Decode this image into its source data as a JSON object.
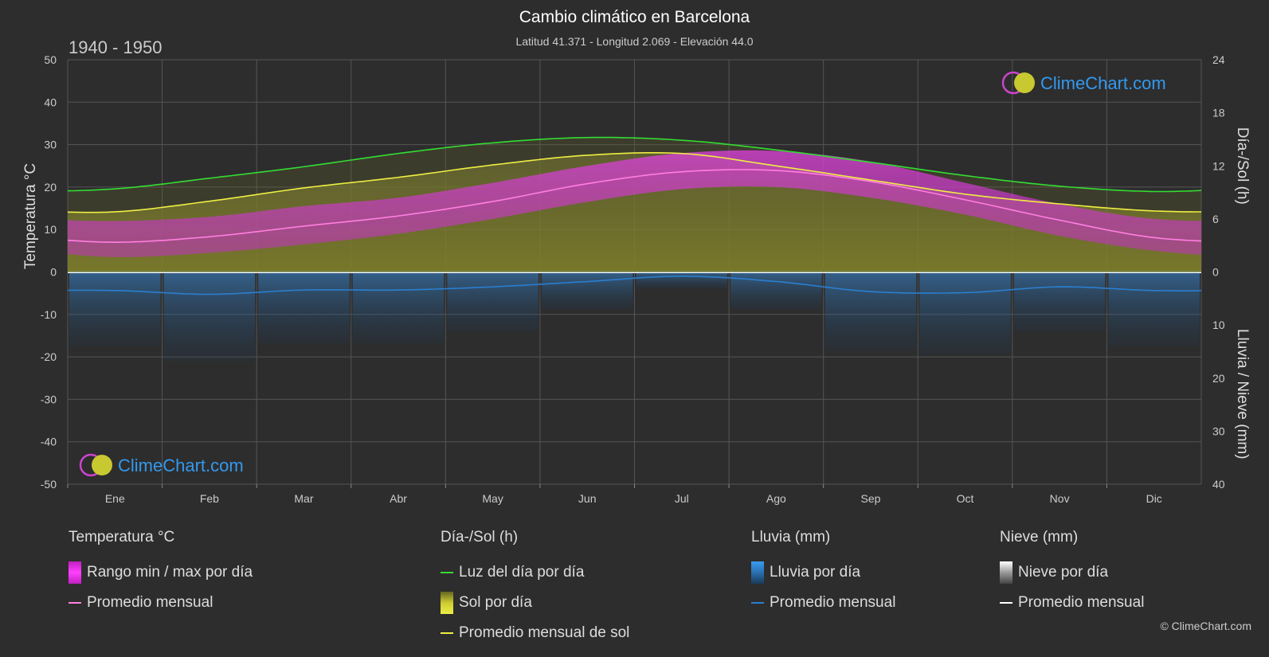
{
  "header": {
    "title": "Cambio climático en Barcelona",
    "subtitle": "Latitud 41.371 - Longitud 2.069 - Elevación 44.0",
    "period": "1940 - 1950"
  },
  "watermark": "ClimeChart.com",
  "copyright": "© ClimeChart.com",
  "legend": {
    "temp": {
      "header": "Temperatura °C",
      "range": "Rango min / max por día",
      "avg": "Promedio mensual"
    },
    "sun": {
      "header": "Día-/Sol (h)",
      "daylight": "Luz del día por día",
      "sun": "Sol por día",
      "avg": "Promedio mensual de sol"
    },
    "rain": {
      "header": "Lluvia (mm)",
      "rain": "Lluvia por día",
      "avg": "Promedio mensual"
    },
    "snow": {
      "header": "Nieve (mm)",
      "snow": "Nieve por día",
      "avg": "Promedio mensual"
    }
  },
  "colors": {
    "background": "#2d2d2d",
    "temp_range": "#e040e0",
    "temp_avg": "#ff7fe0",
    "daylight": "#33dd33",
    "sunshine": "#bbbb33",
    "sun_avg": "#eeee44",
    "rain": "#3a8bd8",
    "rain_avg": "#2a7fd0",
    "snow": "#dddddd",
    "snow_avg": "#ffffff"
  },
  "chart_data": {
    "type": "area",
    "months": [
      "Ene",
      "Feb",
      "Mar",
      "Abr",
      "May",
      "Jun",
      "Jul",
      "Ago",
      "Sep",
      "Oct",
      "Nov",
      "Dic"
    ],
    "y_left": {
      "label": "Temperatura °C",
      "range": [
        -50,
        50
      ],
      "ticks": [
        50,
        40,
        30,
        20,
        10,
        0,
        -10,
        -20,
        -30,
        -40,
        -50
      ]
    },
    "y_right_top": {
      "label": "Día-/Sol (h)",
      "range": [
        0,
        24
      ],
      "ticks": [
        24,
        18,
        12,
        6,
        0
      ]
    },
    "y_right_bottom": {
      "label": "Lluvia / Nieve (mm)",
      "range": [
        0,
        40
      ],
      "ticks": [
        10,
        20,
        30,
        40
      ]
    },
    "series": [
      {
        "name": "Luz del día por día",
        "unit": "h",
        "values": [
          9.4,
          10.6,
          11.9,
          13.4,
          14.6,
          15.2,
          14.9,
          13.8,
          12.4,
          10.9,
          9.7,
          9.1
        ]
      },
      {
        "name": "Sol por día",
        "unit": "h",
        "values": [
          6.8,
          8.0,
          9.5,
          10.7,
          12.1,
          13.2,
          13.4,
          12.0,
          10.4,
          8.8,
          7.7,
          6.9
        ]
      },
      {
        "name": "Promedio mensual",
        "unit": "°C",
        "values": [
          7.0,
          8.3,
          10.8,
          13.2,
          16.6,
          20.8,
          23.6,
          23.9,
          21.3,
          17.0,
          12.2,
          8.1
        ]
      },
      {
        "name": "Rango min / max por día (min)",
        "unit": "°C",
        "values": [
          3.5,
          4.5,
          6.5,
          9.0,
          12.5,
          16.5,
          19.5,
          20.0,
          17.5,
          13.5,
          8.5,
          5.0
        ]
      },
      {
        "name": "Rango min / max por día (max)",
        "unit": "°C",
        "values": [
          12.0,
          13.0,
          15.5,
          17.5,
          21.0,
          25.0,
          28.0,
          28.5,
          26.0,
          21.0,
          16.0,
          12.5
        ]
      },
      {
        "name": "Lluvia por día (Promedio mensual)",
        "unit": "mm",
        "values": [
          3.5,
          4.2,
          3.4,
          3.4,
          2.8,
          1.8,
          0.8,
          1.8,
          3.7,
          3.9,
          2.8,
          3.5
        ]
      },
      {
        "name": "Nieve por día (Promedio mensual)",
        "unit": "mm",
        "values": [
          0,
          0,
          0,
          0,
          0,
          0,
          0,
          0,
          0,
          0,
          0,
          0
        ]
      }
    ]
  }
}
